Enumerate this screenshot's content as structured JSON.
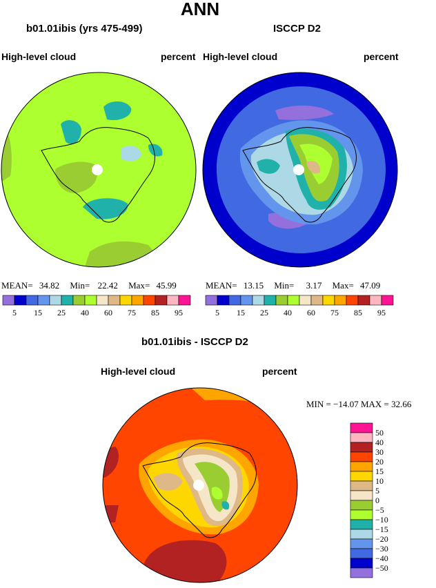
{
  "header": {
    "title": "ANN"
  },
  "panels": [
    {
      "title": "b01.01ibis (yrs 475-499)",
      "left_label": "High-level cloud",
      "right_label": "percent",
      "stats": {
        "mean_label": "MEAN=",
        "mean": "34.82",
        "min_label": "Min=",
        "min": "22.42",
        "max_label": "Max=",
        "max": "45.99"
      }
    },
    {
      "title": "ISCCP D2",
      "left_label": "High-level cloud",
      "right_label": "percent",
      "stats": {
        "mean_label": "MEAN=",
        "mean": "13.15",
        "min_label": "Min=",
        "min": "3.17",
        "max_label": "Max=",
        "max": "47.09"
      }
    }
  ],
  "abs_colorbar": {
    "colors": [
      "#9370db",
      "#0000cd",
      "#4169e1",
      "#6495ed",
      "#add8e6",
      "#20b2aa",
      "#9acd32",
      "#adff2f",
      "#f5e6c8",
      "#deb887",
      "#ffd700",
      "#ffa500",
      "#ff4500",
      "#b22222",
      "#ffb6c1",
      "#ff1493"
    ],
    "labels": [
      "5",
      "15",
      "25",
      "40",
      "60",
      "75",
      "85",
      "95"
    ]
  },
  "diff": {
    "title": "b01.01ibis - ISCCP D2",
    "left_label": "High-level cloud",
    "right_label": "percent",
    "minmax": "MIN = −14.07  MAX =  32.66",
    "colorbar": {
      "colors_top_to_bottom": [
        "#ff1493",
        "#ffb6c1",
        "#b22222",
        "#ff4500",
        "#ffa500",
        "#ffd700",
        "#deb887",
        "#f5e6c8",
        "#9acd32",
        "#adff2f",
        "#20b2aa",
        "#add8e6",
        "#6495ed",
        "#4169e1",
        "#0000cd",
        "#9370db"
      ],
      "labels_top_to_bottom": [
        "50",
        "40",
        "30",
        "20",
        "15",
        "10",
        "5",
        "0",
        "−5",
        "−10",
        "−15",
        "−20",
        "−30",
        "−40",
        "−50"
      ]
    }
  }
}
